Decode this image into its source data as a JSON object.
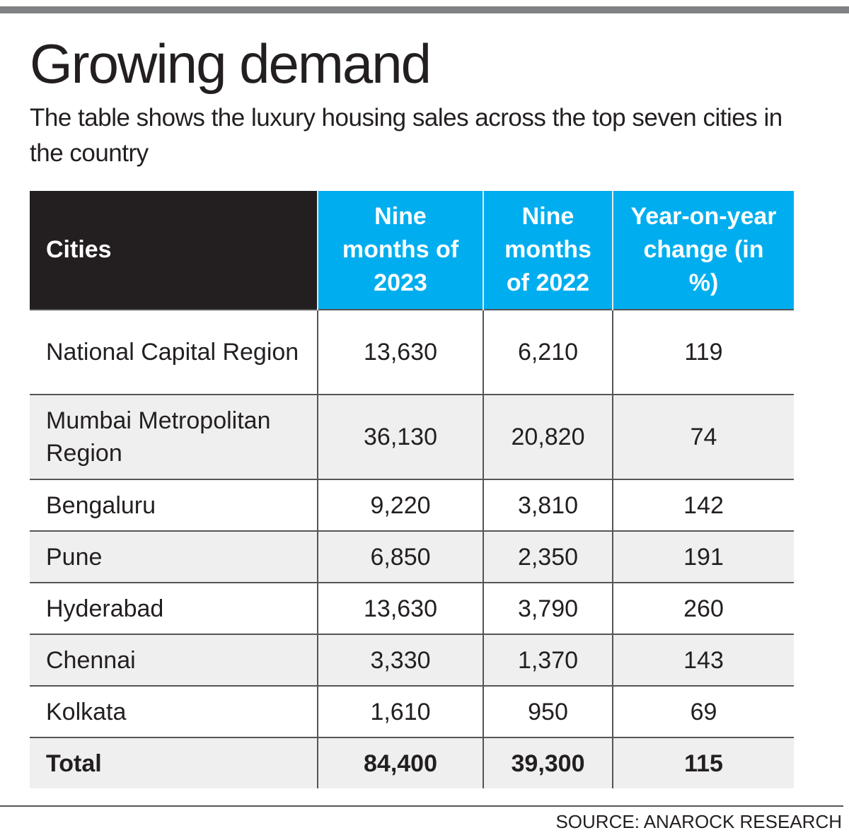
{
  "colors": {
    "header_dark": "#231f20",
    "header_accent": "#00aeef",
    "stripe": "#efefef",
    "top_bar": "#808184"
  },
  "chart_data": {
    "type": "table",
    "title": "Growing demand",
    "subtitle": "The table shows the luxury housing sales across the top seven cities in the country",
    "columns": [
      "Cities",
      "Nine months of 2023",
      "Nine months of 2022",
      "Year-on-year change (in %)"
    ],
    "rows": [
      {
        "city": "National Capital Region",
        "y2023": "13,630",
        "y2022": "6,210",
        "yoy": "119"
      },
      {
        "city": "Mumbai Metropolitan Region",
        "y2023": "36,130",
        "y2022": "20,820",
        "yoy": "74"
      },
      {
        "city": "Bengaluru",
        "y2023": "9,220",
        "y2022": "3,810",
        "yoy": "142"
      },
      {
        "city": "Pune",
        "y2023": "6,850",
        "y2022": "2,350",
        "yoy": "191"
      },
      {
        "city": "Hyderabad",
        "y2023": "13,630",
        "y2022": "3,790",
        "yoy": "260"
      },
      {
        "city": "Chennai",
        "y2023": "3,330",
        "y2022": "1,370",
        "yoy": "143"
      },
      {
        "city": "Kolkata",
        "y2023": "1,610",
        "y2022": "950",
        "yoy": "69"
      }
    ],
    "total": {
      "city": "Total",
      "y2023": "84,400",
      "y2022": "39,300",
      "yoy": "115"
    },
    "source": "SOURCE: ANAROCK RESEARCH"
  }
}
